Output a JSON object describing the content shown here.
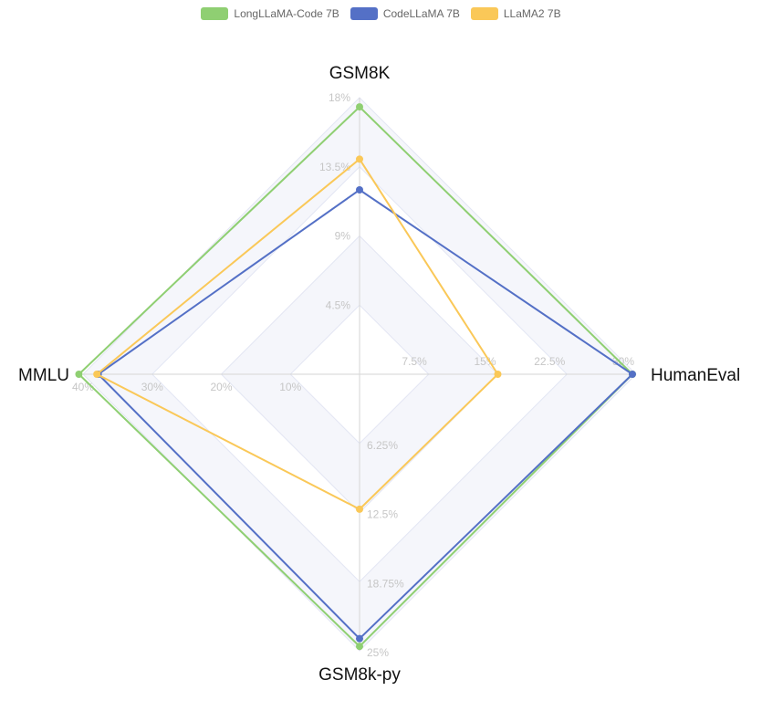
{
  "chart_data": {
    "type": "radar",
    "legend_position": "top-center",
    "axes": [
      {
        "name": "GSM8K",
        "max": 18,
        "ticks": [
          "4.5%",
          "9%",
          "13.5%",
          "18%"
        ]
      },
      {
        "name": "HumanEval",
        "max": 30,
        "ticks": [
          "7.5%",
          "15%",
          "22.5%",
          "30%"
        ]
      },
      {
        "name": "GSM8k-py",
        "max": 25,
        "ticks": [
          "6.25%",
          "12.5%",
          "18.75%",
          "25%"
        ]
      },
      {
        "name": "MMLU",
        "max": 40,
        "ticks": [
          "10%",
          "20%",
          "30%",
          "40%"
        ]
      }
    ],
    "series": [
      {
        "name": "LongLLaMA-Code 7B",
        "color": "#8fcf72",
        "values": [
          17.4,
          29.6,
          24.6,
          40.6
        ]
      },
      {
        "name": "CodeLLaMA 7B",
        "color": "#5470c6",
        "values": [
          12.0,
          29.6,
          23.9,
          37.8
        ]
      },
      {
        "name": "LLaMA2 7B",
        "color": "#fac858",
        "values": [
          14.0,
          15.0,
          12.2,
          38.0
        ]
      }
    ]
  }
}
